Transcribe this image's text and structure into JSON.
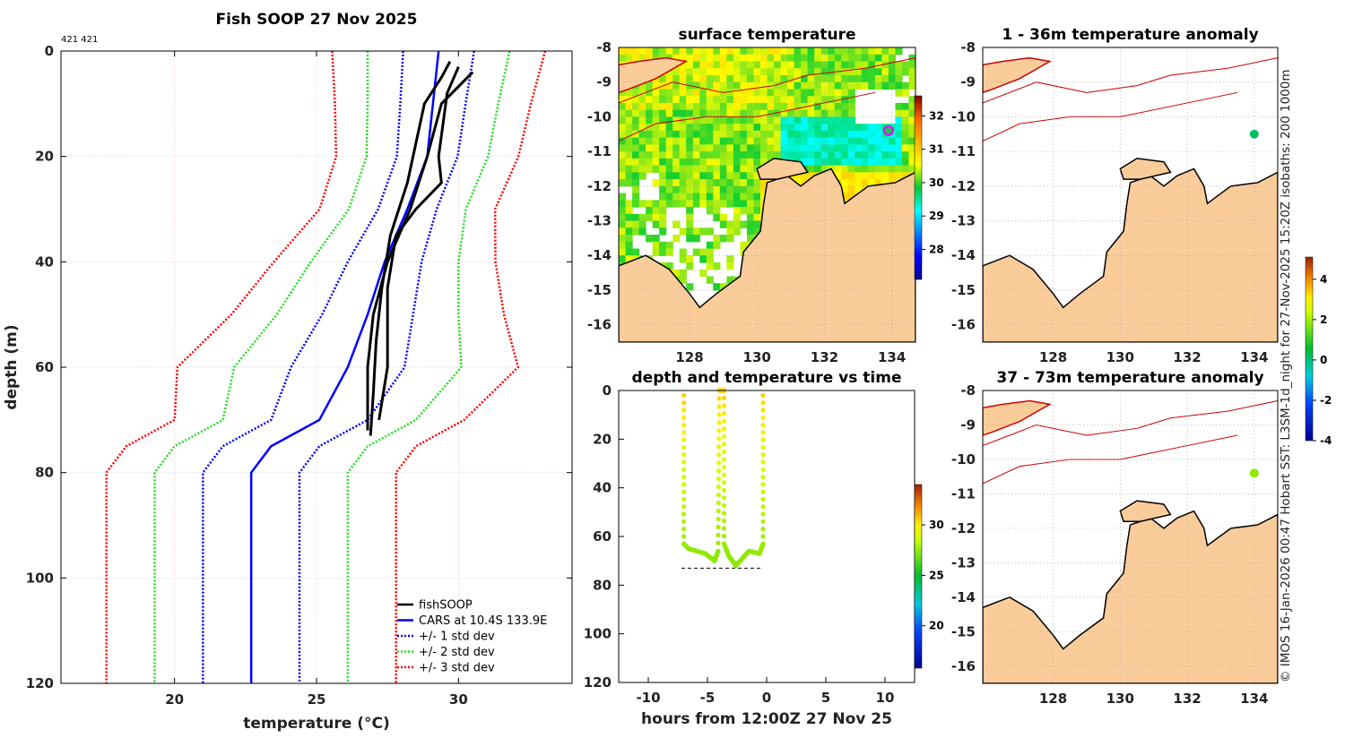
{
  "chart_data": [
    {
      "type": "line",
      "title": "Fish SOOP 27 Nov 2025",
      "corner_note": "421 421",
      "xlabel": "temperature (°C)",
      "xlabel_main": "temperature (",
      "xlabel_sup": "o",
      "xlabel_end": "C)",
      "ylabel": "depth (m)",
      "xlim": [
        16,
        34
      ],
      "ylim": [
        0,
        120
      ],
      "xticks": [
        20,
        25,
        30
      ],
      "yticks": [
        0,
        20,
        40,
        60,
        80,
        100,
        120
      ],
      "grid": true,
      "legend_position": "bottom-right",
      "legend": [
        "fishSOOP",
        "CARS at 10.4S 133.9E",
        "+/- 1 std dev",
        "+/- 2 std dev",
        "+/- 3 std dev"
      ],
      "cars": {
        "depth": [
          0,
          10,
          20,
          30,
          40,
          50,
          60,
          70,
          75,
          80,
          120
        ],
        "mean": [
          29.3,
          29.1,
          28.9,
          28.2,
          27.4,
          26.8,
          26.1,
          25.1,
          23.4,
          22.7,
          22.7
        ],
        "std": [
          1.25,
          1.15,
          1.07,
          1.03,
          1.3,
          1.6,
          2.0,
          1.7,
          1.7,
          1.7,
          1.7
        ]
      },
      "fishsoop_profiles": [
        {
          "temp": [
            29.7,
            29.4,
            28.8,
            28.6,
            28.2,
            27.6,
            27.3,
            27.1,
            27.0,
            26.9
          ],
          "depth": [
            2,
            5,
            10,
            15,
            25,
            35,
            45,
            55,
            65,
            73
          ]
        },
        {
          "temp": [
            30.0,
            29.6,
            29.3,
            29.4,
            28.5,
            27.8,
            27.5,
            27.5,
            27.2
          ],
          "depth": [
            3,
            8,
            20,
            25,
            30,
            35,
            45,
            60,
            70
          ]
        },
        {
          "temp": [
            30.5,
            29.4,
            28.9,
            28.3,
            27.5,
            27.0,
            26.8,
            26.8
          ],
          "depth": [
            4,
            10,
            20,
            30,
            40,
            50,
            60,
            72
          ]
        }
      ],
      "colors": {
        "fishsoop": "#000000",
        "cars": "#0000ff",
        "sd1": "#0000ff",
        "sd2": "#22dd22",
        "sd3": "#ff0000"
      }
    },
    {
      "type": "heatmap",
      "title": "surface temperature",
      "xlim": [
        125.9,
        134.7
      ],
      "ylim": [
        -16.5,
        -8
      ],
      "xticks": [
        128,
        130,
        132,
        134
      ],
      "yticks": [
        -8,
        -9,
        -10,
        -11,
        -12,
        -13,
        -14,
        -15,
        -16
      ],
      "colorbar": {
        "range": [
          27.1,
          32.6
        ],
        "ticks": [
          28,
          29,
          30,
          31,
          32
        ]
      },
      "station": {
        "lon": 133.9,
        "lat": -10.4
      }
    },
    {
      "type": "scatter",
      "title": "depth and temperature vs time",
      "xlabel": "hours from 12:00Z 27 Nov 25",
      "xlim": [
        -12.5,
        12.5
      ],
      "ylim": [
        0,
        120
      ],
      "xticks": [
        -10,
        -5,
        0,
        5,
        10
      ],
      "yticks": [
        0,
        20,
        40,
        60,
        80,
        100,
        120
      ],
      "colorbar": {
        "range": [
          15.8,
          34
        ],
        "ticks": [
          20,
          25,
          30
        ]
      },
      "track": {
        "hours": [
          -7.0,
          -7.0,
          -6.6,
          -5.2,
          -4.4,
          -4.1,
          -4.0,
          -3.6,
          -3.6,
          -3.2,
          -2.6,
          -1.5,
          -0.6,
          -0.3,
          -0.3
        ],
        "depth": [
          2,
          63,
          65,
          67,
          70,
          66,
          0,
          0,
          63,
          68,
          72,
          66,
          67,
          63,
          2
        ],
        "temp": [
          30.5,
          27.2,
          27.0,
          27.0,
          26.9,
          27.0,
          30.5,
          30.6,
          27.2,
          27.0,
          26.9,
          27.0,
          27.0,
          27.2,
          30.5
        ]
      },
      "bottom_line": {
        "hours": [
          -7.2,
          -0.3
        ],
        "depth": 73
      }
    },
    {
      "type": "heatmap",
      "title": "1 - 36m temperature anomaly",
      "xlim": [
        125.9,
        134.7
      ],
      "ylim": [
        -16.5,
        -8
      ],
      "xticks": [
        128,
        130,
        132,
        134
      ],
      "yticks": [
        -8,
        -9,
        -10,
        -11,
        -12,
        -13,
        -14,
        -15,
        -16
      ],
      "station": {
        "lon": 134.0,
        "lat": -10.5,
        "anomaly": 0.2
      }
    },
    {
      "type": "heatmap",
      "title": "37 - 73m temperature anomaly",
      "xlim": [
        125.9,
        134.7
      ],
      "ylim": [
        -16.5,
        -8
      ],
      "xticks": [
        128,
        130,
        132,
        134
      ],
      "yticks": [
        -8,
        -9,
        -10,
        -11,
        -12,
        -13,
        -14,
        -15,
        -16
      ],
      "station": {
        "lon": 134.0,
        "lat": -10.4,
        "anomaly": 1.6
      },
      "colorbar": {
        "range": [
          -4,
          5.1
        ],
        "ticks": [
          -4,
          -2,
          0,
          2,
          4
        ]
      }
    }
  ],
  "credit": "© IMOS 16-Jan-2026 00:47 Hobart SST: L3SM-1d_night for 27-Nov-2025 15:20Z isobaths: 200  1000m",
  "colors": {
    "land": "#f9cc9a",
    "coast": "#000000",
    "isobath": "#cc0000",
    "station_ring": "#ee00ee"
  }
}
